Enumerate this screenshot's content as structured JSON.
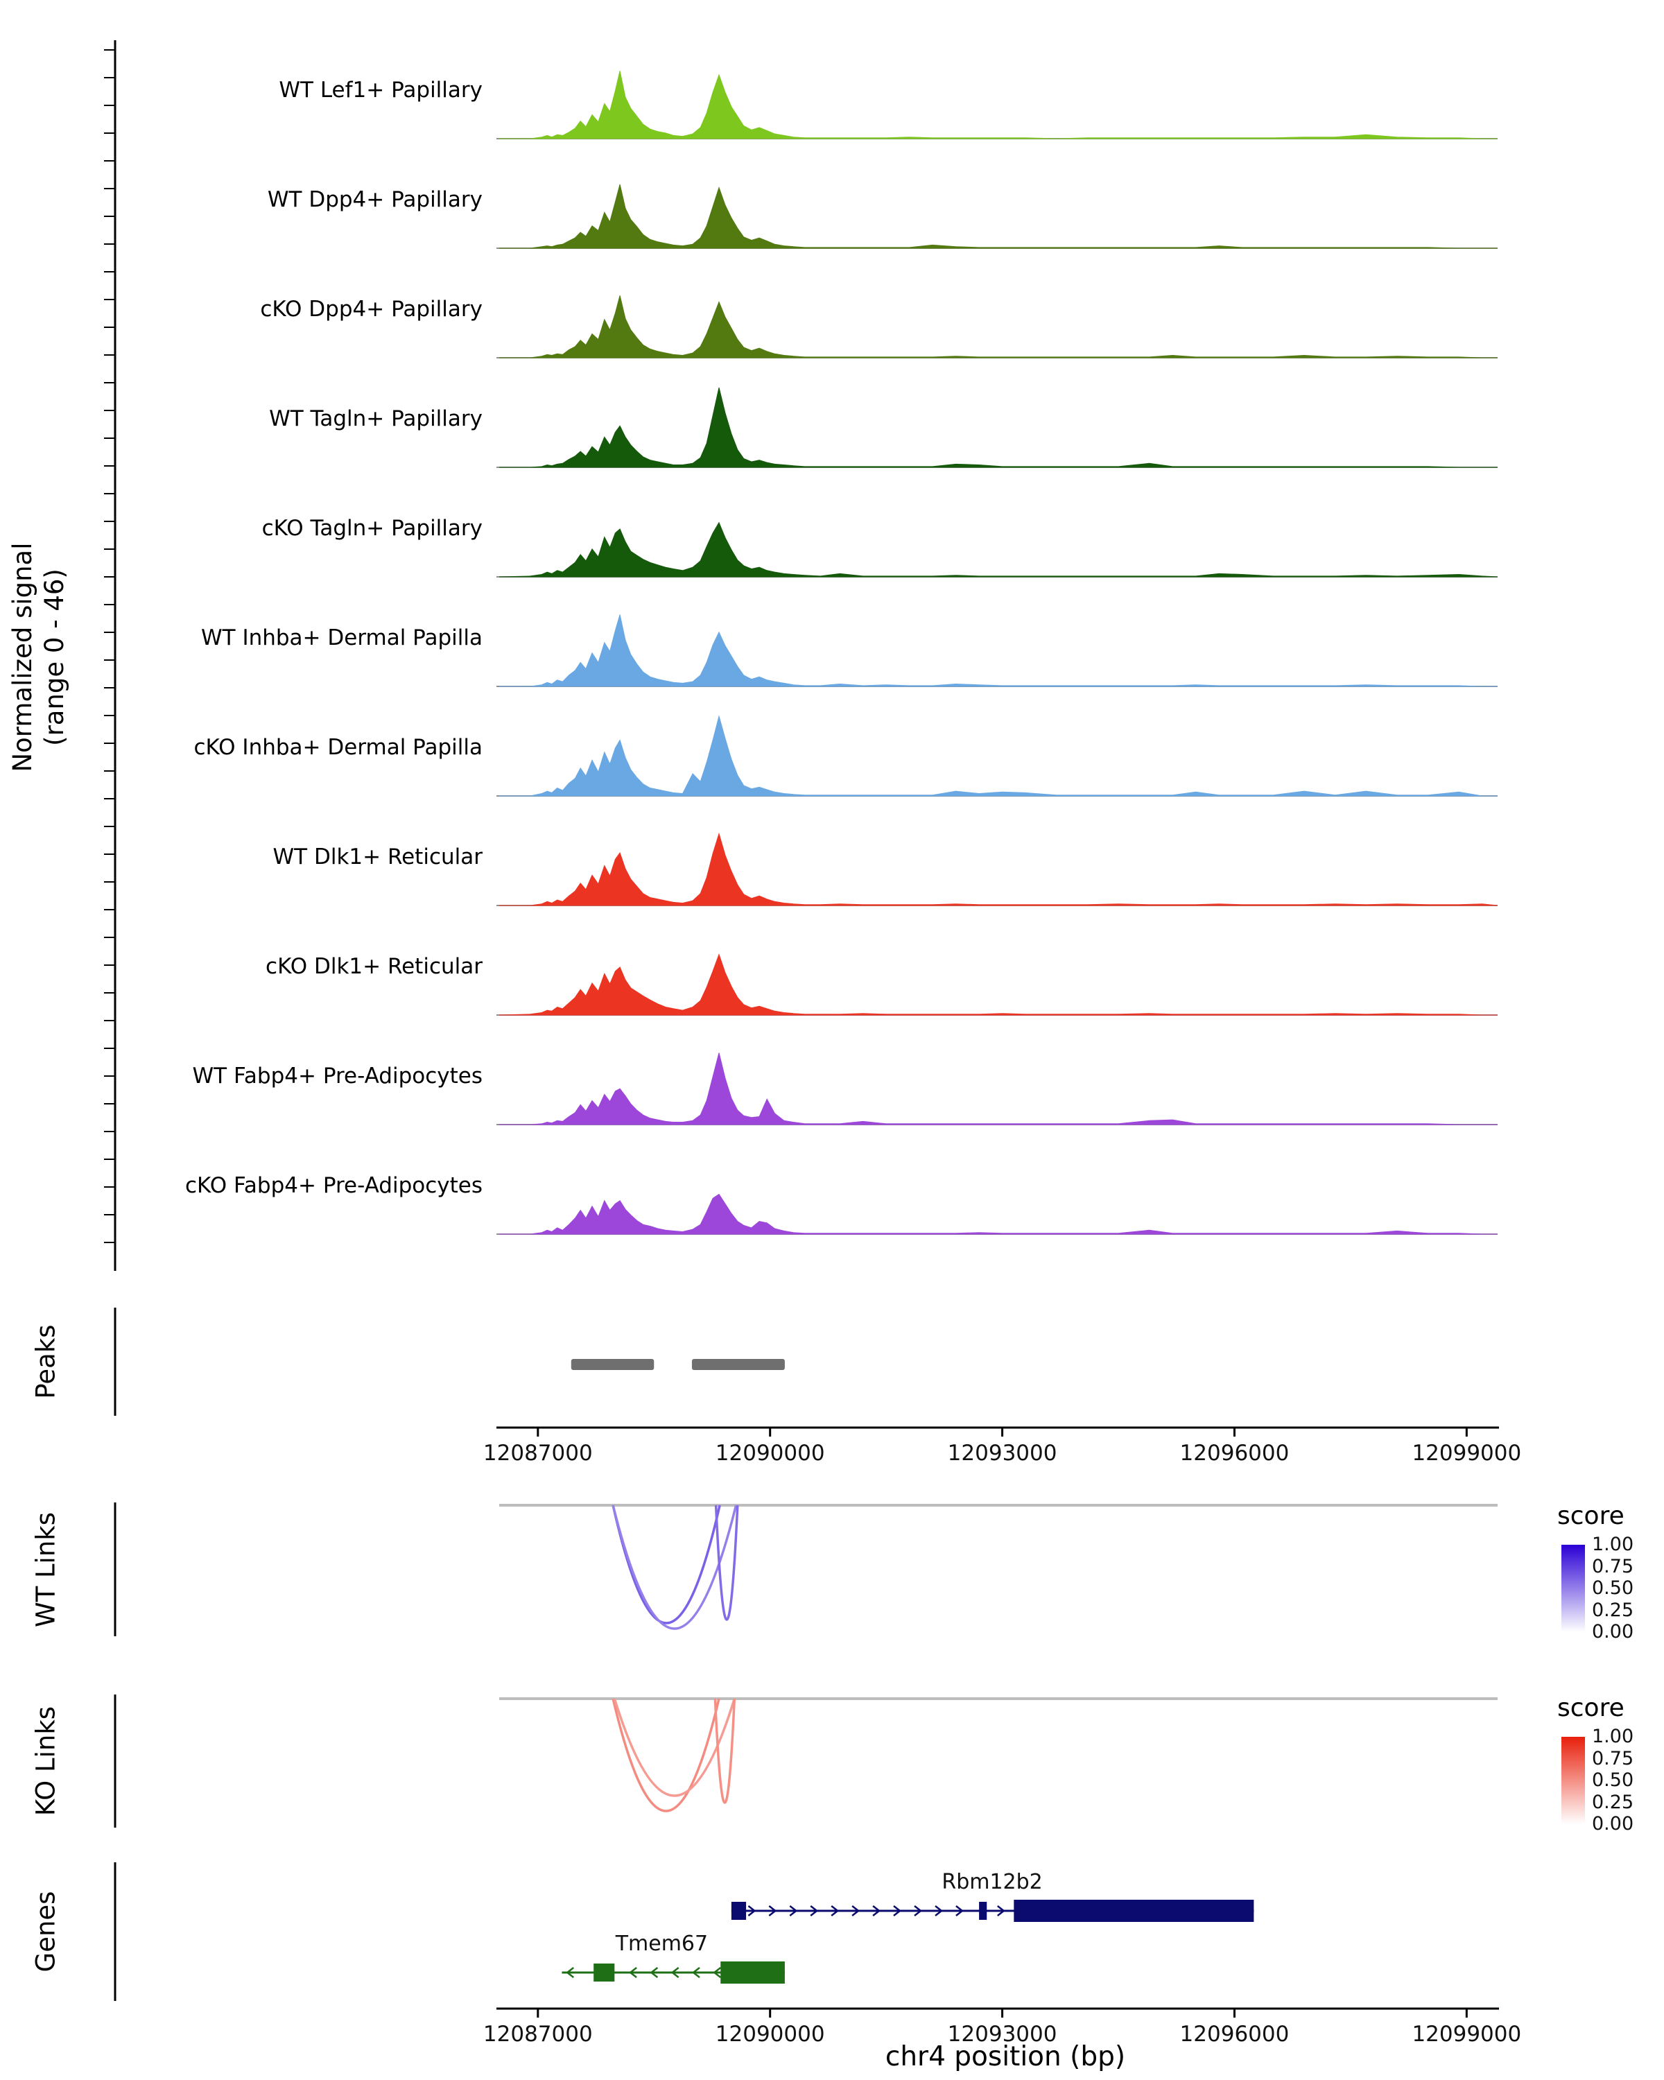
{
  "figure": {
    "ylabel_line1": "Normalized signal",
    "ylabel_line2": "(range 0 - 46)",
    "section_labels": {
      "peaks": "Peaks",
      "wt_links": "WT Links",
      "ko_links": "KO Links",
      "genes": "Genes"
    }
  },
  "chart_data": {
    "type": "area",
    "description": "Genome browser coverage plot, 11 scATAC coverage tracks with peaks, links and gene models",
    "genome_axis": {
      "domain": [
        12086500,
        12099400
      ],
      "ticks": [
        12087000,
        12090000,
        12093000,
        12096000,
        12099000
      ],
      "tick_labels": [
        "12087000",
        "12090000",
        "12093000",
        "12096000",
        "12099000"
      ],
      "xlabel": "chr4 position (bp)"
    },
    "signal_range": [
      0,
      46
    ],
    "x_grid": [
      12086500,
      12086900,
      12087050,
      12087120,
      12087180,
      12087250,
      12087320,
      12087400,
      12087480,
      12087550,
      12087620,
      12087700,
      12087780,
      12087860,
      12087930,
      12088000,
      12088060,
      12088130,
      12088200,
      12088280,
      12088360,
      12088450,
      12088550,
      12088650,
      12088750,
      12088870,
      12089000,
      12089100,
      12089180,
      12089260,
      12089340,
      12089420,
      12089500,
      12089580,
      12089660,
      12089760,
      12089860,
      12089960,
      12090060,
      12090180,
      12090300,
      12090450,
      12090650,
      12090900,
      12091200,
      12091500,
      12091800,
      12092100,
      12092400,
      12092700,
      12093000,
      12093300,
      12093700,
      12094100,
      12094500,
      12094900,
      12095200,
      12095500,
      12095800,
      12096100,
      12096500,
      12096900,
      12097300,
      12097700,
      12098100,
      12098500,
      12098900,
      12099200,
      12099400
    ],
    "tracks": [
      {
        "label": "WT Lef1+ Papillary",
        "color": "#7dc71e",
        "values": [
          0,
          0,
          0.02,
          0.04,
          0.02,
          0.05,
          0.04,
          0.08,
          0.13,
          0.22,
          0.15,
          0.3,
          0.21,
          0.44,
          0.34,
          0.6,
          0.85,
          0.52,
          0.38,
          0.28,
          0.18,
          0.12,
          0.09,
          0.07,
          0.04,
          0.03,
          0.06,
          0.14,
          0.32,
          0.58,
          0.8,
          0.58,
          0.4,
          0.28,
          0.16,
          0.11,
          0.14,
          0.1,
          0.06,
          0.04,
          0.02,
          0.01,
          0.01,
          0.01,
          0.01,
          0.01,
          0.02,
          0.01,
          0.01,
          0.01,
          0.01,
          0.01,
          0,
          0.01,
          0.01,
          0.01,
          0.01,
          0.01,
          0.01,
          0.01,
          0.01,
          0.02,
          0.02,
          0.05,
          0.02,
          0.01,
          0.01,
          0,
          0
        ]
      },
      {
        "label": "WT Dpp4+ Papillary",
        "color": "#527a10",
        "values": [
          0,
          0,
          0.02,
          0.03,
          0.02,
          0.04,
          0.05,
          0.09,
          0.13,
          0.2,
          0.15,
          0.28,
          0.22,
          0.45,
          0.33,
          0.58,
          0.8,
          0.5,
          0.36,
          0.27,
          0.17,
          0.11,
          0.08,
          0.06,
          0.04,
          0.03,
          0.05,
          0.13,
          0.28,
          0.52,
          0.76,
          0.54,
          0.38,
          0.25,
          0.14,
          0.1,
          0.13,
          0.09,
          0.05,
          0.03,
          0.02,
          0.01,
          0.01,
          0.01,
          0.01,
          0.01,
          0.01,
          0.04,
          0.02,
          0.01,
          0.01,
          0.01,
          0.01,
          0.01,
          0.01,
          0.01,
          0.01,
          0.01,
          0.03,
          0.01,
          0.01,
          0.01,
          0.01,
          0.01,
          0.01,
          0.01,
          0,
          0,
          0
        ]
      },
      {
        "label": "cKO Dpp4+ Papillary",
        "color": "#527a10",
        "values": [
          0,
          0,
          0.02,
          0.04,
          0.03,
          0.05,
          0.04,
          0.1,
          0.14,
          0.22,
          0.16,
          0.3,
          0.23,
          0.48,
          0.35,
          0.56,
          0.78,
          0.49,
          0.35,
          0.25,
          0.16,
          0.11,
          0.08,
          0.06,
          0.04,
          0.03,
          0.06,
          0.14,
          0.3,
          0.5,
          0.7,
          0.51,
          0.37,
          0.23,
          0.13,
          0.09,
          0.12,
          0.08,
          0.05,
          0.03,
          0.02,
          0.01,
          0.01,
          0.01,
          0.01,
          0.01,
          0.01,
          0.01,
          0.02,
          0.01,
          0.01,
          0.01,
          0.01,
          0.01,
          0.01,
          0.01,
          0.03,
          0.01,
          0.01,
          0.01,
          0.01,
          0.03,
          0.01,
          0.01,
          0.02,
          0.01,
          0.01,
          0,
          0
        ]
      },
      {
        "label": "WT Tagln+ Papillary",
        "color": "#155a0b",
        "values": [
          0,
          0,
          0.01,
          0.03,
          0.02,
          0.04,
          0.05,
          0.1,
          0.14,
          0.2,
          0.14,
          0.26,
          0.19,
          0.38,
          0.28,
          0.44,
          0.52,
          0.38,
          0.28,
          0.2,
          0.13,
          0.09,
          0.07,
          0.05,
          0.03,
          0.03,
          0.05,
          0.12,
          0.3,
          0.65,
          1.0,
          0.68,
          0.42,
          0.22,
          0.11,
          0.07,
          0.09,
          0.06,
          0.04,
          0.03,
          0.02,
          0.01,
          0.01,
          0.01,
          0.01,
          0.01,
          0.01,
          0.01,
          0.04,
          0.03,
          0.01,
          0.01,
          0.01,
          0.01,
          0.01,
          0.05,
          0.01,
          0.01,
          0.01,
          0.01,
          0.01,
          0.01,
          0.01,
          0.01,
          0.01,
          0.01,
          0,
          0,
          0
        ]
      },
      {
        "label": "cKO Tagln+ Papillary",
        "color": "#155a0b",
        "values": [
          0,
          0.01,
          0.03,
          0.06,
          0.04,
          0.08,
          0.06,
          0.12,
          0.18,
          0.28,
          0.2,
          0.35,
          0.25,
          0.5,
          0.37,
          0.55,
          0.6,
          0.44,
          0.32,
          0.27,
          0.22,
          0.18,
          0.15,
          0.12,
          0.1,
          0.08,
          0.12,
          0.2,
          0.38,
          0.55,
          0.68,
          0.49,
          0.34,
          0.21,
          0.14,
          0.1,
          0.12,
          0.08,
          0.06,
          0.04,
          0.03,
          0.02,
          0.01,
          0.04,
          0.01,
          0.01,
          0.01,
          0.01,
          0.02,
          0.01,
          0.01,
          0.01,
          0.01,
          0.01,
          0.01,
          0.01,
          0.01,
          0.01,
          0.04,
          0.03,
          0.01,
          0.01,
          0.01,
          0.02,
          0.01,
          0.02,
          0.03,
          0.01,
          0
        ]
      },
      {
        "label": "WT Inhba+ Dermal Papilla",
        "color": "#6aa8e4",
        "values": [
          0,
          0,
          0.02,
          0.05,
          0.03,
          0.08,
          0.06,
          0.14,
          0.2,
          0.3,
          0.22,
          0.42,
          0.3,
          0.55,
          0.44,
          0.7,
          0.9,
          0.58,
          0.4,
          0.28,
          0.18,
          0.12,
          0.09,
          0.07,
          0.05,
          0.04,
          0.06,
          0.14,
          0.3,
          0.52,
          0.68,
          0.51,
          0.38,
          0.25,
          0.14,
          0.09,
          0.12,
          0.08,
          0.06,
          0.04,
          0.02,
          0.01,
          0.01,
          0.03,
          0.01,
          0.02,
          0.01,
          0.01,
          0.03,
          0.02,
          0.01,
          0.01,
          0.01,
          0.01,
          0.01,
          0.01,
          0.01,
          0.02,
          0.01,
          0.01,
          0.01,
          0.01,
          0.01,
          0.02,
          0.01,
          0.01,
          0.01,
          0,
          0
        ]
      },
      {
        "label": "cKO Inhba+ Dermal Papilla",
        "color": "#6aa8e4",
        "values": [
          0,
          0,
          0.03,
          0.06,
          0.04,
          0.1,
          0.07,
          0.16,
          0.22,
          0.35,
          0.25,
          0.45,
          0.3,
          0.55,
          0.4,
          0.6,
          0.7,
          0.48,
          0.33,
          0.23,
          0.15,
          0.1,
          0.08,
          0.06,
          0.04,
          0.03,
          0.28,
          0.18,
          0.42,
          0.7,
          1.0,
          0.72,
          0.46,
          0.26,
          0.13,
          0.09,
          0.11,
          0.08,
          0.05,
          0.03,
          0.02,
          0.01,
          0.01,
          0.01,
          0.01,
          0.01,
          0.01,
          0.01,
          0.06,
          0.03,
          0.05,
          0.04,
          0.01,
          0.01,
          0.01,
          0.01,
          0.01,
          0.05,
          0.01,
          0.01,
          0.01,
          0.06,
          0.01,
          0.06,
          0.01,
          0.01,
          0.05,
          0,
          0
        ]
      },
      {
        "label": "WT Dlk1+ Reticular",
        "color": "#ec3423",
        "values": [
          0,
          0,
          0.02,
          0.05,
          0.03,
          0.07,
          0.05,
          0.12,
          0.18,
          0.28,
          0.2,
          0.38,
          0.27,
          0.5,
          0.37,
          0.58,
          0.66,
          0.46,
          0.33,
          0.24,
          0.15,
          0.1,
          0.08,
          0.06,
          0.04,
          0.03,
          0.06,
          0.15,
          0.35,
          0.65,
          0.9,
          0.63,
          0.43,
          0.26,
          0.14,
          0.09,
          0.12,
          0.08,
          0.05,
          0.03,
          0.02,
          0.01,
          0.01,
          0.02,
          0.01,
          0.01,
          0.01,
          0.01,
          0.02,
          0.01,
          0.01,
          0.01,
          0.01,
          0.01,
          0.02,
          0.01,
          0.01,
          0.01,
          0.02,
          0.01,
          0.01,
          0.01,
          0.02,
          0.01,
          0.02,
          0.01,
          0.01,
          0.02,
          0
        ]
      },
      {
        "label": "cKO Dlk1+ Reticular",
        "color": "#ec3423",
        "values": [
          0,
          0.01,
          0.03,
          0.06,
          0.05,
          0.1,
          0.08,
          0.15,
          0.22,
          0.32,
          0.24,
          0.4,
          0.3,
          0.52,
          0.39,
          0.55,
          0.6,
          0.44,
          0.34,
          0.29,
          0.24,
          0.19,
          0.14,
          0.1,
          0.08,
          0.06,
          0.1,
          0.18,
          0.35,
          0.55,
          0.76,
          0.53,
          0.36,
          0.22,
          0.13,
          0.09,
          0.11,
          0.08,
          0.05,
          0.03,
          0.02,
          0.01,
          0.01,
          0.01,
          0.02,
          0.01,
          0.01,
          0.01,
          0.01,
          0.01,
          0.02,
          0.01,
          0.01,
          0.01,
          0.01,
          0.02,
          0.01,
          0.01,
          0.01,
          0.01,
          0.01,
          0.01,
          0.02,
          0.01,
          0.02,
          0.01,
          0.01,
          0,
          0
        ]
      },
      {
        "label": "WT Fabp4+ Pre-Adipocytes",
        "color": "#9c46da",
        "values": [
          0,
          0,
          0.01,
          0.03,
          0.02,
          0.05,
          0.04,
          0.1,
          0.15,
          0.25,
          0.17,
          0.3,
          0.21,
          0.38,
          0.29,
          0.42,
          0.45,
          0.36,
          0.26,
          0.18,
          0.12,
          0.08,
          0.06,
          0.04,
          0.03,
          0.03,
          0.05,
          0.12,
          0.3,
          0.6,
          0.9,
          0.58,
          0.33,
          0.18,
          0.11,
          0.09,
          0.1,
          0.32,
          0.14,
          0.05,
          0.03,
          0.01,
          0.01,
          0.01,
          0.04,
          0.01,
          0.01,
          0.01,
          0.01,
          0.01,
          0.01,
          0.01,
          0.01,
          0.01,
          0.01,
          0.05,
          0.06,
          0.01,
          0.01,
          0.01,
          0.01,
          0.01,
          0.01,
          0.01,
          0.01,
          0.01,
          0,
          0,
          0
        ]
      },
      {
        "label": "cKO Fabp4+ Pre-Adipocytes",
        "color": "#9c46da",
        "values": [
          0,
          0,
          0.02,
          0.05,
          0.03,
          0.08,
          0.05,
          0.12,
          0.2,
          0.3,
          0.2,
          0.35,
          0.22,
          0.42,
          0.3,
          0.38,
          0.42,
          0.31,
          0.24,
          0.17,
          0.12,
          0.1,
          0.07,
          0.05,
          0.04,
          0.03,
          0.06,
          0.12,
          0.28,
          0.45,
          0.5,
          0.38,
          0.26,
          0.16,
          0.11,
          0.08,
          0.16,
          0.14,
          0.07,
          0.04,
          0.02,
          0.01,
          0.01,
          0.01,
          0.01,
          0.01,
          0.01,
          0.01,
          0.01,
          0.02,
          0.01,
          0.01,
          0.01,
          0.01,
          0.01,
          0.05,
          0.01,
          0.01,
          0.01,
          0.01,
          0.01,
          0.01,
          0.01,
          0.01,
          0.04,
          0.01,
          0.01,
          0,
          0
        ]
      }
    ],
    "peaks": {
      "color": "#6f6f6f",
      "intervals": [
        {
          "start": 12087430,
          "end": 12088500
        },
        {
          "start": 12088990,
          "end": 12090190
        }
      ]
    },
    "links_wt": {
      "legend_title": "score",
      "legend_ticks": [
        "1.00",
        "0.75",
        "0.50",
        "0.25",
        "0.00"
      ],
      "color_high": "#2a00d5",
      "arcs": [
        {
          "start": 12087970,
          "end": 12089350,
          "score": 0.62,
          "depth": 170
        },
        {
          "start": 12087970,
          "end": 12089560,
          "score": 0.5,
          "depth": 178
        },
        {
          "start": 12089300,
          "end": 12089580,
          "score": 0.58,
          "depth": 165
        }
      ]
    },
    "links_ko": {
      "legend_title": "score",
      "legend_ticks": [
        "1.00",
        "0.75",
        "0.50",
        "0.25",
        "0.00"
      ],
      "color_high": "#e8200c",
      "arcs": [
        {
          "start": 12087970,
          "end": 12089340,
          "score": 0.52,
          "depth": 162
        },
        {
          "start": 12087990,
          "end": 12089540,
          "score": 0.45,
          "depth": 140
        },
        {
          "start": 12089290,
          "end": 12089540,
          "score": 0.5,
          "depth": 150
        }
      ]
    },
    "genes": [
      {
        "name": "Rbm12b2",
        "color": "#0b0b6f",
        "strand": "+",
        "line_start": 12089500,
        "line_end": 12096250,
        "boxes": [
          [
            12089500,
            12089690
          ],
          [
            12092700,
            12092800
          ]
        ],
        "thick_box": [
          12093150,
          12096250
        ],
        "arrow_region": [
          12089800,
          12093020
        ],
        "arrow_count": 12,
        "label_x": 12092870
      },
      {
        "name": "Tmem67",
        "color": "#1e6f16",
        "strand": "-",
        "line_start": 12087310,
        "line_end": 12090190,
        "boxes": [
          [
            12087720,
            12087990
          ]
        ],
        "thick_box": [
          12089360,
          12090190
        ],
        "arrow_region": [
          12087380,
          12089280
        ],
        "arrow_count": 7,
        "label_x": 12088600
      }
    ]
  }
}
